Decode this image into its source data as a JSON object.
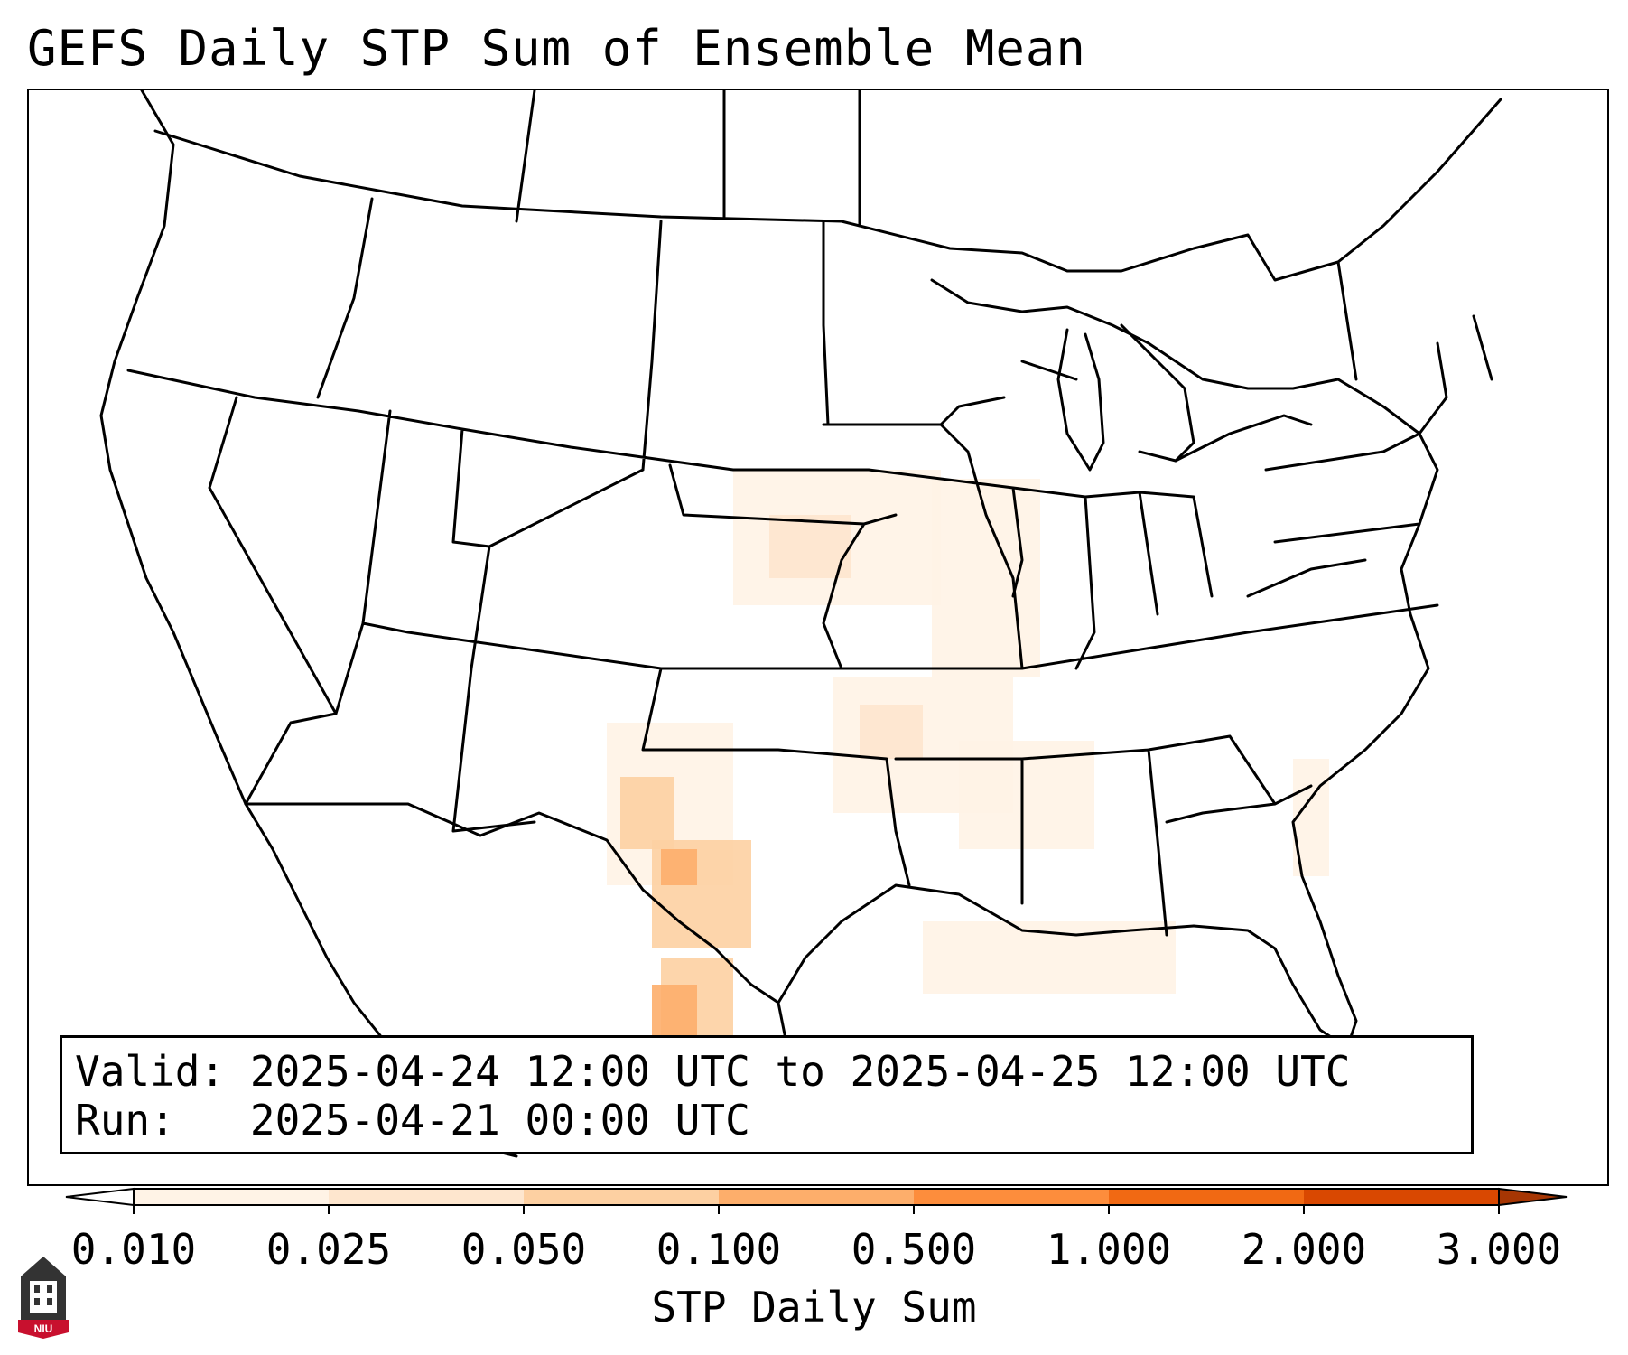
{
  "title": "GEFS Daily STP Sum of Ensemble Mean",
  "info": {
    "valid_label": "Valid:",
    "valid_value": "2025-04-24 12:00 UTC to 2025-04-25 12:00 UTC",
    "run_label": "Run:",
    "run_value": "2025-04-21 00:00 UTC"
  },
  "colorbar": {
    "label": "STP Daily Sum",
    "ticks": [
      "0.010",
      "0.025",
      "0.050",
      "0.100",
      "0.500",
      "1.000",
      "2.000",
      "3.000"
    ],
    "colors": [
      "#fff3e6",
      "#fee6ce",
      "#fdd0a2",
      "#fdae6b",
      "#fd8d3c",
      "#f16913",
      "#d94801"
    ],
    "under_color": "#ffffff",
    "over_color": "#a63603",
    "extend": "both"
  },
  "logo": {
    "text": "NIU",
    "icon": "university-tower-icon"
  },
  "icons": [
    "niu-logo-icon"
  ]
}
